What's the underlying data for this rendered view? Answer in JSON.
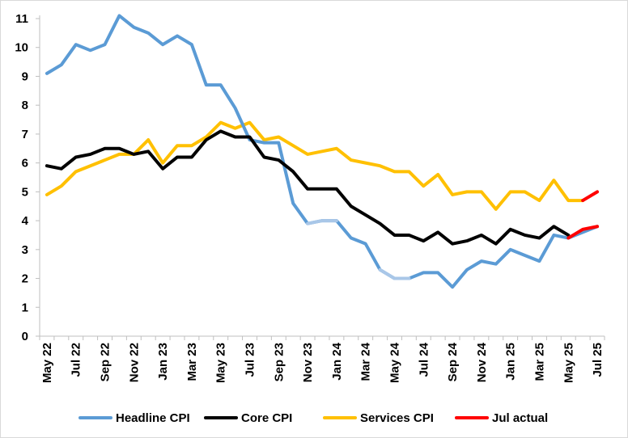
{
  "chart_data": {
    "type": "line",
    "title": "",
    "xlabel": "",
    "ylabel": "",
    "ylim": [
      0,
      11
    ],
    "yticks": [
      0,
      1,
      2,
      3,
      4,
      5,
      6,
      7,
      8,
      9,
      10,
      11
    ],
    "grid": false,
    "legend_position": "bottom",
    "categories": [
      "May 22",
      "Jun 22",
      "Jul 22",
      "Aug 22",
      "Sep 22",
      "Oct 22",
      "Nov 22",
      "Dec 22",
      "Jan 23",
      "Feb 23",
      "Mar 23",
      "Apr 23",
      "May 23",
      "Jun 23",
      "Jul 23",
      "Aug 23",
      "Sep 23",
      "Oct 23",
      "Nov 23",
      "Dec 23",
      "Jan 24",
      "Feb 24",
      "Mar 24",
      "Apr 24",
      "May 24",
      "Jun 24",
      "Jul 24",
      "Aug 24",
      "Sep 24",
      "Oct 24",
      "Nov 24",
      "Dec 24",
      "Jan 25",
      "Feb 25",
      "Mar 25",
      "Apr 25",
      "May 25",
      "Jun 25",
      "Jul 25"
    ],
    "x_tick_labels": [
      "May 22",
      "Jul 22",
      "Sep 22",
      "Nov 22",
      "Jan 23",
      "Mar 23",
      "May 23",
      "Jul 23",
      "Sep 23",
      "Nov 23",
      "Jan 24",
      "Mar 24",
      "May 24",
      "Jul 24",
      "Sep 24",
      "Nov 24",
      "Jan 25",
      "Mar 25",
      "May 25",
      "Jul 25"
    ],
    "series": [
      {
        "name": "Headline CPI",
        "color": "#5b9bd5",
        "values": [
          9.1,
          9.4,
          10.1,
          9.9,
          10.1,
          11.1,
          10.7,
          10.5,
          10.1,
          10.4,
          10.1,
          8.7,
          8.7,
          7.9,
          6.8,
          6.7,
          6.7,
          4.6,
          3.9,
          4.0,
          4.0,
          3.4,
          3.2,
          2.3,
          2.0,
          2.0,
          2.2,
          2.2,
          1.7,
          2.3,
          2.6,
          2.5,
          3.0,
          2.8,
          2.6,
          3.5,
          3.4,
          3.6,
          3.8
        ]
      },
      {
        "name": "Core CPI",
        "color": "#000000",
        "values": [
          5.9,
          5.8,
          6.2,
          6.3,
          6.5,
          6.5,
          6.3,
          6.4,
          5.8,
          6.2,
          6.2,
          6.8,
          7.1,
          6.9,
          6.9,
          6.2,
          6.1,
          5.7,
          5.1,
          5.1,
          5.1,
          4.5,
          4.2,
          3.9,
          3.5,
          3.5,
          3.3,
          3.6,
          3.2,
          3.3,
          3.5,
          3.2,
          3.7,
          3.5,
          3.4,
          3.8,
          3.5,
          null,
          null
        ]
      },
      {
        "name": "Services CPI",
        "color": "#ffc000",
        "values": [
          4.9,
          5.2,
          5.7,
          5.9,
          6.1,
          6.3,
          6.3,
          6.8,
          6.0,
          6.6,
          6.6,
          6.9,
          7.4,
          7.2,
          7.4,
          6.8,
          6.9,
          6.6,
          6.3,
          6.4,
          6.5,
          6.1,
          6.0,
          5.9,
          5.7,
          5.7,
          5.2,
          5.6,
          4.9,
          5.0,
          5.0,
          4.4,
          5.0,
          5.0,
          4.7,
          5.4,
          4.7,
          4.7,
          null
        ]
      },
      {
        "name": "Jul actual",
        "color": "#ff0000",
        "values": [
          null,
          null,
          null,
          null,
          null,
          null,
          null,
          null,
          null,
          null,
          null,
          null,
          null,
          null,
          null,
          null,
          null,
          null,
          null,
          null,
          null,
          null,
          null,
          null,
          null,
          null,
          null,
          null,
          null,
          null,
          null,
          null,
          null,
          null,
          null,
          null,
          null,
          null,
          null
        ],
        "segments": [
          {
            "values_by_category": {
              "May 25": 3.4,
              "Jun 25": 3.7,
              "Jul 25": 3.8
            }
          },
          {
            "values_by_category": {
              "Jun 25": 4.7,
              "Jul 25": 5.0
            }
          }
        ]
      }
    ],
    "light_segments": [
      {
        "series": "Headline CPI",
        "from": "Nov 23",
        "to": "Jan 24",
        "color": "#a9c7e8"
      },
      {
        "series": "Headline CPI",
        "from": "Apr 24",
        "to": "Jun 24",
        "color": "#a9c7e8"
      }
    ]
  }
}
